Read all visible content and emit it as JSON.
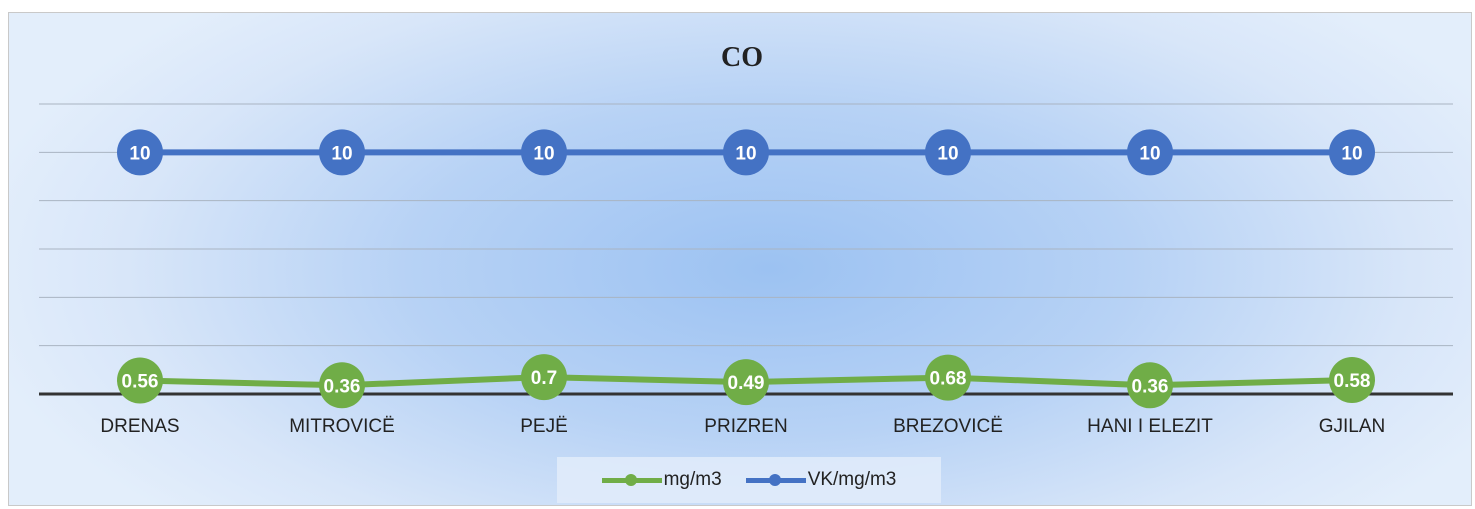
{
  "chart_data": {
    "type": "line",
    "title": "CO",
    "categories": [
      "DRENAS",
      "MITROVICË",
      "PEJË",
      "PRIZREN",
      "BREZOVICË",
      "HANI I ELEZIT",
      "GJILAN"
    ],
    "series": [
      {
        "name": "mg/m3",
        "values": [
          0.56,
          0.36,
          0.7,
          0.49,
          0.68,
          0.36,
          0.58
        ],
        "color": "#70ad47"
      },
      {
        "name": "VK/mg/m3",
        "values": [
          10,
          10,
          10,
          10,
          10,
          10,
          10
        ],
        "color": "#4472c4"
      }
    ],
    "ylim": [
      0,
      12
    ],
    "y_gridlines": [
      0,
      2,
      4,
      6,
      8,
      10,
      12
    ],
    "y_tick_labels_shown": false,
    "grid": true,
    "legend": "bottom",
    "data_labels": true
  }
}
